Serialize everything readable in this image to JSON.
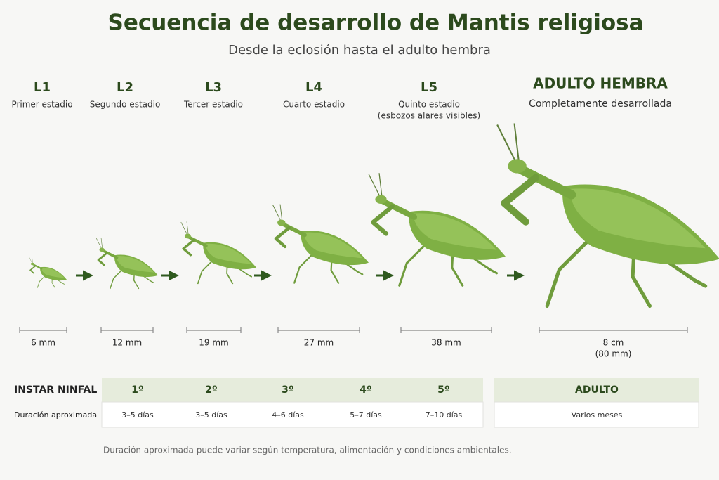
{
  "header": {
    "title": "Secuencia de desarrollo de Mantis religiosa",
    "subtitle": "Desde la eclosión hasta el adulto hembra"
  },
  "stages": [
    {
      "label": "L1",
      "description": [
        "Primer estadio"
      ],
      "size": [
        "6 mm"
      ]
    },
    {
      "label": "L2",
      "description": [
        "Segundo estadio"
      ],
      "size": [
        "12 mm"
      ]
    },
    {
      "label": "L3",
      "description": [
        "Tercer estadio"
      ],
      "size": [
        "19 mm"
      ]
    },
    {
      "label": "L4",
      "description": [
        "Cuarto estadio"
      ],
      "size": [
        "27 mm"
      ]
    },
    {
      "label": "L5",
      "description": [
        "Quinto estadio",
        "(esbozos alares visibles)"
      ],
      "size": [
        "38 mm"
      ]
    },
    {
      "label": "ADULTO HEMBRA",
      "description": [
        "Completamente desarrollada"
      ],
      "size": [
        "8 cm",
        "(80 mm)"
      ]
    }
  ],
  "table": {
    "rows": [
      [
        "INSTAR NINFAL",
        "1º",
        "2º",
        "3º",
        "4º",
        "5º",
        "ADULTO"
      ],
      [
        "Duración aproximada",
        "3–5 días",
        "3–5 días",
        "4–6 días",
        "5–7 días",
        "7–10 días",
        "Varios meses"
      ]
    ]
  },
  "footnote": "Duración aproximada puede variar según temperatura, alimentación y condiciones ambientales."
}
